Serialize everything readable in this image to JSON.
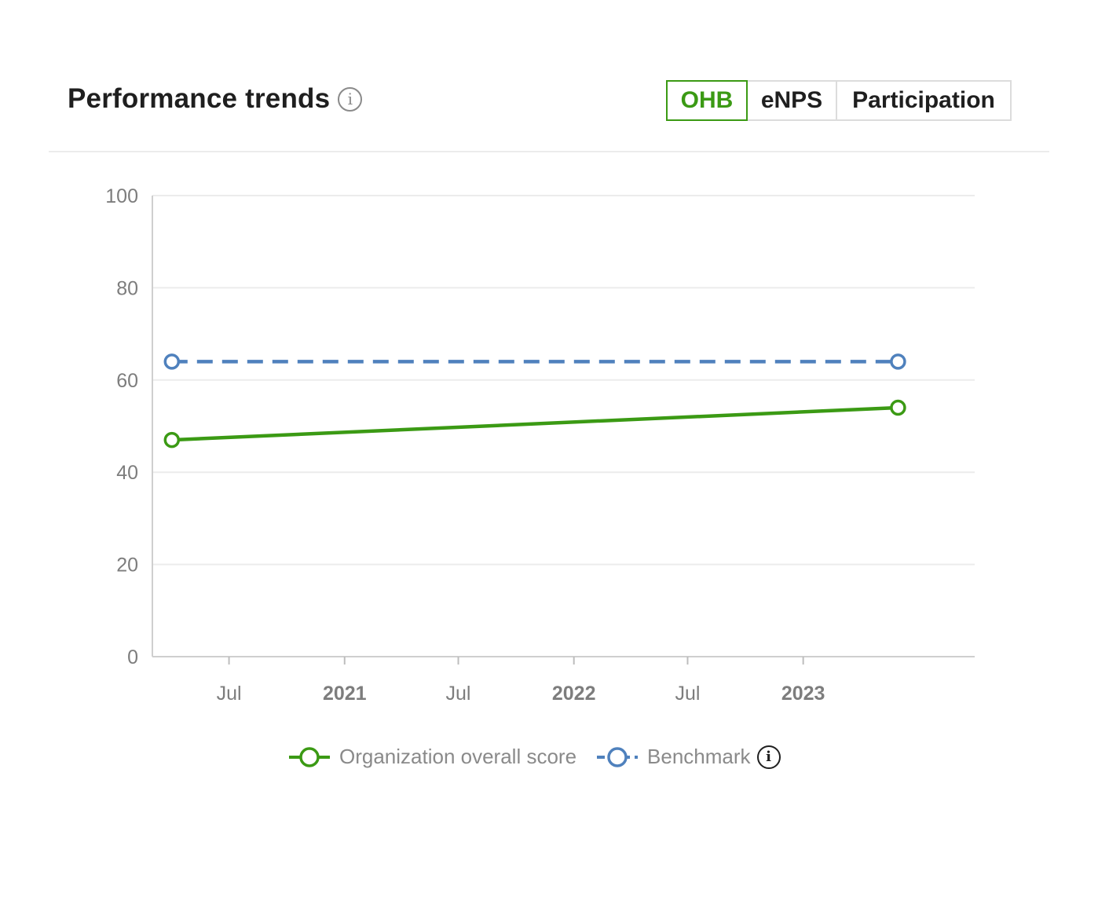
{
  "header": {
    "title": "Performance trends",
    "info_icon": "info-icon"
  },
  "tabs": [
    {
      "label": "OHB",
      "active": true
    },
    {
      "label": "eNPS",
      "active": false
    },
    {
      "label": "Participation",
      "active": false
    }
  ],
  "colors": {
    "accent": "#3b9a14",
    "benchmark": "#4f81bd",
    "grid": "#ececec",
    "axis_text": "#7d7d7d"
  },
  "chart_data": {
    "type": "line",
    "title": "",
    "xlabel": "",
    "ylabel": "",
    "ylim": [
      0,
      100
    ],
    "y_ticks": [
      0,
      20,
      40,
      60,
      80,
      100
    ],
    "x_ticks": [
      {
        "label": "Jul",
        "date": "2020-07-01",
        "bold": false
      },
      {
        "label": "2021",
        "date": "2021-01-01",
        "bold": true
      },
      {
        "label": "Jul",
        "date": "2021-07-01",
        "bold": false
      },
      {
        "label": "2022",
        "date": "2022-01-01",
        "bold": true
      },
      {
        "label": "Jul",
        "date": "2022-07-01",
        "bold": false
      },
      {
        "label": "2023",
        "date": "2023-01-01",
        "bold": true
      }
    ],
    "xlim": [
      "2020-03-01",
      "2023-10-01"
    ],
    "grid": true,
    "legend_position": "bottom-center",
    "series": [
      {
        "name": "Organization overall score",
        "color": "#3b9a14",
        "dash": false,
        "points": [
          {
            "x": "2020-04-01",
            "y": 47
          },
          {
            "x": "2023-06-01",
            "y": 54
          }
        ]
      },
      {
        "name": "Benchmark",
        "color": "#4f81bd",
        "dash": true,
        "points": [
          {
            "x": "2020-04-01",
            "y": 64
          },
          {
            "x": "2023-06-01",
            "y": 64
          }
        ]
      }
    ]
  },
  "legend": {
    "items": [
      {
        "label": "Organization overall score"
      },
      {
        "label": "Benchmark",
        "info_icon": "info-icon"
      }
    ]
  }
}
